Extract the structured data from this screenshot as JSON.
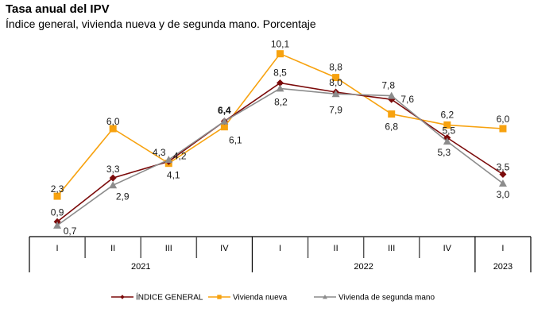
{
  "chart_data": {
    "type": "line",
    "title": "Tasa anual del IPV",
    "subtitle": "Índice general, vivienda nueva y de segunda mano. Porcentaje",
    "xlabel": "",
    "ylabel": "",
    "ylim": [
      0,
      10.1
    ],
    "grid": false,
    "legend_position": "bottom",
    "categories": [
      "I",
      "II",
      "III",
      "IV",
      "I",
      "II",
      "III",
      "IV",
      "I"
    ],
    "years": [
      {
        "label": "2021",
        "span": 4
      },
      {
        "label": "2022",
        "span": 4
      },
      {
        "label": "2023",
        "span": 1
      }
    ],
    "series": [
      {
        "name": "ÍNDICE GENERAL",
        "color": "#7b0a0a",
        "marker": "diamond",
        "values": [
          0.9,
          3.3,
          4.2,
          6.4,
          8.5,
          8.0,
          7.6,
          5.5,
          3.5
        ],
        "labels": [
          "0,9",
          "3,3",
          "4,2",
          "6,4",
          "8,5",
          "8,0",
          "7,6",
          "5,5",
          "3,5"
        ]
      },
      {
        "name": "Vivienda nueva",
        "color": "#f7a20f",
        "marker": "square",
        "values": [
          2.3,
          6.0,
          4.1,
          6.1,
          10.1,
          8.8,
          6.8,
          6.2,
          6.0
        ],
        "labels": [
          "2,3",
          "6,0",
          "4,1",
          "6,1",
          "10,1",
          "8,8",
          "6,8",
          "6,2",
          "6,0"
        ]
      },
      {
        "name": "Vivienda de segunda mano",
        "color": "#8c8c8c",
        "marker": "triangle",
        "values": [
          0.7,
          2.9,
          4.3,
          6.4,
          8.2,
          7.9,
          7.8,
          5.3,
          3.0
        ],
        "labels": [
          "0,7",
          "2,9",
          "4,3",
          "6,4",
          "8,2",
          "7,9",
          "7,8",
          "5,3",
          "3,0"
        ]
      }
    ]
  }
}
